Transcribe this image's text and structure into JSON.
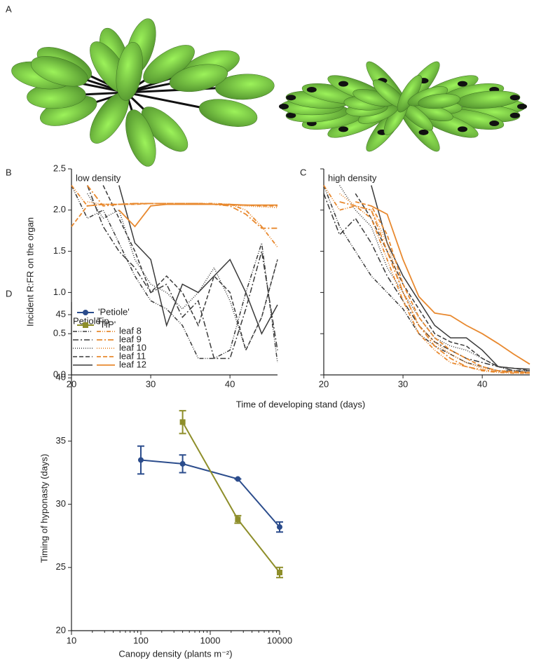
{
  "panel_a": {
    "label": "A"
  },
  "chart_data": [
    {
      "type": "line",
      "panel_label": "B",
      "annotation": "low density",
      "ylabel": "Incident R:FR on the organ",
      "xlabel": "Time of developing stand (days)",
      "x": [
        20,
        22,
        24,
        26,
        28,
        30,
        32,
        34,
        36,
        38,
        40,
        42,
        44,
        46
      ],
      "xlim": [
        20,
        46
      ],
      "xticks": [
        20,
        30,
        40
      ],
      "ylim": [
        0,
        2.5
      ],
      "yticks": [
        {
          "value": 0,
          "label": "0.0"
        },
        0.5,
        {
          "value": 1,
          "label": "1.0"
        },
        1.5,
        {
          "value": 2,
          "label": "2.0"
        },
        2.5
      ],
      "legend_headers": [
        "Petiole",
        "Tip"
      ],
      "colors": {
        "petiole": "#3a3a3a",
        "tip": "#e8892f"
      },
      "series": [
        {
          "name": "leaf 8",
          "dash": "6,2,1,2,1,2",
          "petiole_values": [
            2.3,
            1.9,
            2.0,
            1.6,
            1.2,
            0.9,
            0.8,
            0.6,
            0.2,
            0.2,
            0.3,
            1.0,
            1.6,
            0.15
          ],
          "tip_values": [
            2.3,
            2.05,
            2.07,
            2.07,
            2.08,
            2.08,
            2.08,
            2.08,
            2.08,
            2.08,
            2.07,
            2.0,
            1.8,
            1.55
          ]
        },
        {
          "name": "leaf 9",
          "dash": "8,3,2,3",
          "petiole_values": [
            null,
            2.3,
            1.8,
            1.5,
            1.3,
            1.0,
            1.1,
            0.7,
            0.9,
            0.2,
            0.2,
            0.8,
            1.5,
            0.3
          ],
          "tip_values": [
            null,
            2.3,
            2.05,
            2.07,
            2.08,
            2.08,
            2.08,
            2.08,
            2.08,
            2.07,
            2.05,
            1.95,
            1.78,
            1.78
          ]
        },
        {
          "name": "leaf 10",
          "dash": "1,2",
          "petiole_values": [
            null,
            2.2,
            1.9,
            2.0,
            1.4,
            1.1,
            1.0,
            0.8,
            1.0,
            1.3,
            0.9,
            0.3,
            0.7,
            1.4
          ],
          "tip_values": [
            null,
            2.1,
            2.07,
            2.07,
            2.07,
            2.08,
            2.08,
            2.08,
            2.08,
            2.07,
            2.06,
            2.05,
            2.04,
            2.03
          ]
        },
        {
          "name": "leaf 11",
          "dash": "6,3",
          "petiole_values": [
            null,
            null,
            2.3,
            1.9,
            1.5,
            1.0,
            1.2,
            1.0,
            0.6,
            1.2,
            1.0,
            0.3,
            0.7,
            1.4
          ],
          "tip_values": [
            1.8,
            2.05,
            2.07,
            2.07,
            2.07,
            2.08,
            2.08,
            2.08,
            2.08,
            2.07,
            2.06,
            2.06,
            2.05,
            2.05
          ]
        },
        {
          "name": "leaf 12",
          "dash": "",
          "petiole_values": [
            null,
            null,
            null,
            2.3,
            1.6,
            1.4,
            0.6,
            1.1,
            1.0,
            1.2,
            1.4,
            1.0,
            0.5,
            0.85
          ],
          "tip_values": [
            null,
            null,
            null,
            2.0,
            1.8,
            2.05,
            2.07,
            2.07,
            2.07,
            2.07,
            2.07,
            2.06,
            2.06,
            2.06
          ]
        }
      ]
    },
    {
      "type": "line",
      "panel_label": "C",
      "annotation": "high density",
      "x": [
        20,
        22,
        24,
        26,
        28,
        30,
        32,
        34,
        36,
        38,
        40,
        42,
        44,
        46
      ],
      "xlim": [
        20,
        46
      ],
      "xticks": [
        20,
        30,
        40
      ],
      "ylim": [
        0,
        2.5
      ],
      "colors": {
        "petiole": "#3a3a3a",
        "tip": "#e8892f"
      },
      "series": [
        {
          "dash": "6,2,1,2,1,2",
          "petiole_values": [
            2.3,
            1.8,
            1.5,
            1.2,
            1.0,
            0.8,
            0.5,
            0.35,
            0.25,
            0.15,
            0.1,
            0.05,
            0.05,
            0.05
          ],
          "tip_values": [
            2.3,
            2.0,
            2.05,
            1.9,
            1.4,
            0.9,
            0.5,
            0.3,
            0.15,
            0.1,
            0.05,
            0.03,
            0.02,
            0.02
          ]
        },
        {
          "dash": "8,3,2,3",
          "petiole_values": [
            2.2,
            1.7,
            1.9,
            1.6,
            1.2,
            0.9,
            0.6,
            0.4,
            0.3,
            0.2,
            0.15,
            0.1,
            0.05,
            0.03
          ],
          "tip_values": [
            null,
            2.1,
            2.05,
            2.0,
            1.5,
            1.0,
            0.6,
            0.35,
            0.2,
            0.1,
            0.06,
            0.04,
            0.03,
            0.02
          ]
        },
        {
          "dash": "1,2",
          "petiole_values": [
            null,
            2.3,
            2.0,
            1.8,
            1.3,
            1.0,
            0.7,
            0.45,
            0.35,
            0.3,
            0.2,
            0.1,
            0.05,
            0.05
          ],
          "tip_values": [
            null,
            2.2,
            2.05,
            2.0,
            1.6,
            1.0,
            0.6,
            0.4,
            0.25,
            0.15,
            0.08,
            0.05,
            0.03,
            0.03
          ]
        },
        {
          "dash": "6,3",
          "petiole_values": [
            null,
            null,
            2.2,
            1.9,
            1.5,
            1.1,
            0.8,
            0.5,
            0.4,
            0.35,
            0.2,
            0.1,
            0.08,
            0.05
          ],
          "tip_values": [
            null,
            null,
            2.1,
            2.05,
            1.7,
            1.1,
            0.7,
            0.45,
            0.3,
            0.2,
            0.1,
            0.05,
            0.04,
            0.03
          ]
        },
        {
          "dash": "",
          "petiole_values": [
            null,
            null,
            null,
            2.3,
            1.6,
            1.2,
            0.9,
            0.6,
            0.45,
            0.45,
            0.3,
            0.1,
            0.08,
            0.07
          ],
          "tip_values": [
            null,
            null,
            null,
            2.05,
            1.95,
            1.4,
            0.95,
            0.75,
            0.72,
            0.6,
            0.5,
            0.38,
            0.25,
            0.13
          ]
        }
      ]
    },
    {
      "type": "errorbar",
      "panel_label": "D",
      "xlabel": "Canopy density (plants m⁻²)",
      "ylabel": "Timing of hyponasty (days)",
      "log_x": true,
      "xlim": [
        10,
        10000
      ],
      "xticks": [
        10,
        100,
        1000,
        10000
      ],
      "ylim": [
        20,
        46
      ],
      "yticks": [
        20,
        25,
        30,
        35,
        40,
        45
      ],
      "series": [
        {
          "name": "'Petiole'",
          "color": "#2b4c8c",
          "marker": "circle",
          "x": [
            100,
            400,
            2500,
            10000
          ],
          "values": [
            33.5,
            33.2,
            32.0,
            28.2
          ],
          "errors": [
            1.1,
            0.7,
            0,
            0.4
          ]
        },
        {
          "name": "'TIP'",
          "color": "#8e8e2a",
          "marker": "square",
          "x": [
            400,
            2500,
            10000
          ],
          "values": [
            36.5,
            28.8,
            24.6
          ],
          "errors": [
            0.9,
            0.3,
            0.4
          ]
        }
      ]
    }
  ]
}
